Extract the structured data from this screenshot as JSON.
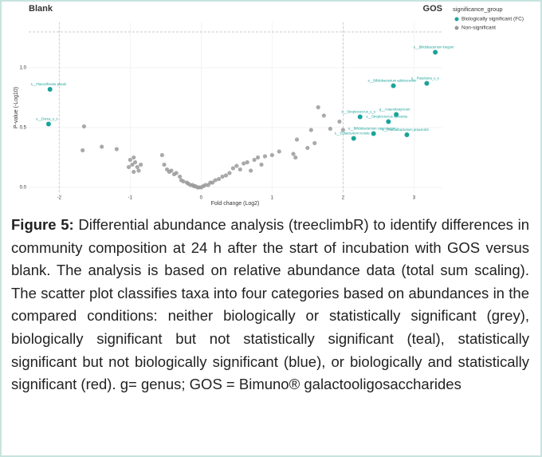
{
  "chart_data": {
    "type": "scatter",
    "strip_left": "Blank",
    "strip_right": "GOS",
    "x_label": "Fold change (Log2)",
    "y_label": "P-value (-Log10)",
    "legend_title": "significance_group",
    "xlim": [
      -2.43,
      3.4
    ],
    "ylim": [
      -0.047,
      1.38
    ],
    "xticks": [
      -2,
      -1,
      0,
      1,
      2,
      3
    ],
    "yticks": [
      {
        "value": 0,
        "label": "0.0"
      },
      {
        "value": 0.5,
        "label": "0.5"
      },
      {
        "value": 1,
        "label": "1.0"
      }
    ],
    "hlines": [
      1.3
    ],
    "vlines": [
      -2,
      2
    ],
    "series": [
      {
        "name": "Biologically significant (FC)",
        "color": "#1aa39a",
        "x": [
          3.3,
          3.18,
          2.71,
          2.75,
          2.24,
          2.64,
          2.43,
          2.9,
          2.15,
          -2.13,
          -2.15
        ],
        "values": [
          1.13,
          0.87,
          0.85,
          0.61,
          0.59,
          0.55,
          0.45,
          0.44,
          0.41,
          0.82,
          0.53
        ],
        "point_labels": [
          "s__Bifidobacterium longum",
          "s__Roseburia_u_s",
          "s__Bifidobacterium adolescentis",
          "g__Anaerobutyricum",
          "s__Streptococcus_u_s",
          "s__Streptococcus salivarius",
          "s__Bifidobacterium catenulatum",
          "s__Faecalibacterium prausnitzii",
          "s__Eubacterium rectale",
          "s__Flavonifractor plautii",
          "s__Dorea_u_s"
        ]
      },
      {
        "name": "Non-significant",
        "color": "#9a9a9a",
        "x": [
          -1.65,
          -1.67,
          -1.4,
          -1.19,
          -0.95,
          -1.0,
          -0.93,
          -0.97,
          -0.9,
          -1.02,
          -0.85,
          -0.88,
          -0.95,
          -0.55,
          -0.52,
          -0.48,
          -0.45,
          -0.42,
          -0.38,
          -0.35,
          -0.3,
          -0.28,
          -0.25,
          -0.2,
          -0.18,
          -0.15,
          -0.12,
          -0.1,
          -0.08,
          -0.05,
          -0.03,
          0.0,
          0.03,
          0.06,
          0.1,
          0.13,
          0.16,
          0.2,
          0.25,
          0.3,
          0.35,
          0.4,
          0.45,
          0.5,
          0.55,
          0.6,
          0.65,
          0.7,
          0.75,
          0.8,
          0.85,
          0.9,
          1.0,
          1.1,
          1.3,
          1.33,
          1.35,
          1.5,
          1.55,
          1.6,
          1.65,
          1.73,
          1.82,
          1.95,
          2.0
        ],
        "values": [
          0.51,
          0.31,
          0.34,
          0.32,
          0.25,
          0.23,
          0.21,
          0.19,
          0.17,
          0.17,
          0.19,
          0.14,
          0.13,
          0.27,
          0.19,
          0.15,
          0.13,
          0.14,
          0.11,
          0.12,
          0.09,
          0.06,
          0.05,
          0.04,
          0.03,
          0.02,
          0.02,
          0.01,
          0.01,
          0.0,
          0.0,
          0.0,
          0.01,
          0.02,
          0.02,
          0.04,
          0.04,
          0.06,
          0.07,
          0.09,
          0.1,
          0.12,
          0.16,
          0.18,
          0.15,
          0.2,
          0.21,
          0.14,
          0.23,
          0.25,
          0.19,
          0.26,
          0.27,
          0.3,
          0.28,
          0.25,
          0.4,
          0.33,
          0.48,
          0.37,
          0.67,
          0.6,
          0.49,
          0.55,
          0.48
        ]
      }
    ]
  },
  "caption": {
    "label": "Figure 5:",
    "text": "Differential abundance analysis (treeclimbR) to identify differences in community composition at 24 h after the start of incubation with GOS versus blank. The analysis is based on relative abundance data (total sum scaling). The scatter plot classifies taxa into four categories based on abundances in the compared conditions: neither biologically or statistically significant (grey), biologically significant but not statistically significant (teal), statistically significant but not biologically significant (blue), or biologically and statistically significant (red). g= genus; GOS = Bimuno® galactooligosaccharides"
  }
}
